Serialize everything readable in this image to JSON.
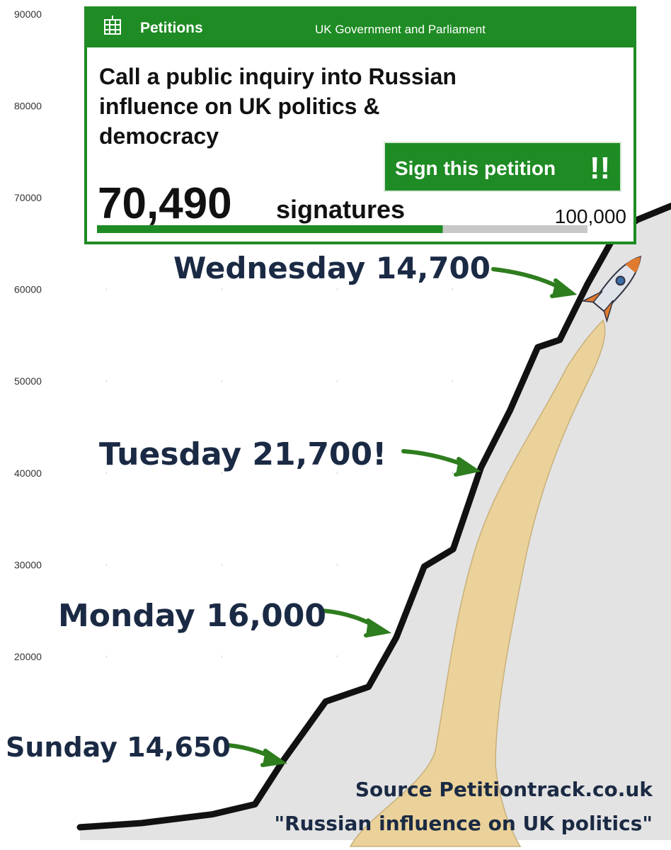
{
  "chart_data": {
    "type": "line",
    "x": [
      0,
      0.53,
      1.14,
      1.51,
      1.75,
      2.12,
      2.49,
      2.73,
      2.97,
      3.22,
      3.46,
      3.71,
      3.95,
      4.14,
      4.38,
      4.62,
      4.81,
      5.1
    ],
    "series": [
      {
        "name": "Signatures",
        "color": "#111111",
        "values": [
          1400,
          1850,
          2800,
          3900,
          8600,
          15100,
          16700,
          22100,
          29800,
          31700,
          40600,
          46800,
          53700,
          54500,
          60600,
          66000,
          67600,
          69100
        ]
      }
    ],
    "xlim": [
      0,
      5.1
    ],
    "ylim": [
      0,
      90000
    ],
    "yticks": [
      20000,
      30000,
      40000,
      50000,
      60000,
      70000,
      80000,
      90000
    ],
    "area_color": "#e3e3e3",
    "annotations": [
      "Wednesday 14,700",
      "Tuesday 21,700!",
      "Monday 16,000",
      "Sunday 14,650"
    ],
    "source": [
      "Source Petitiontrack.co.uk",
      "\"Russian influence on UK politics\""
    ]
  },
  "card": {
    "brand": "Petitions",
    "org": "UK Government and Parliament",
    "title_lines": [
      "Call a public inquiry into Russian",
      "influence on UK politics &",
      "democracy"
    ],
    "button": "Sign this petition",
    "button_mark": "!!",
    "signatures": {
      "value": 70490,
      "label": "70,490"
    },
    "signatures_word": "signatures",
    "target": {
      "value": 100000,
      "label": "100,000"
    }
  }
}
